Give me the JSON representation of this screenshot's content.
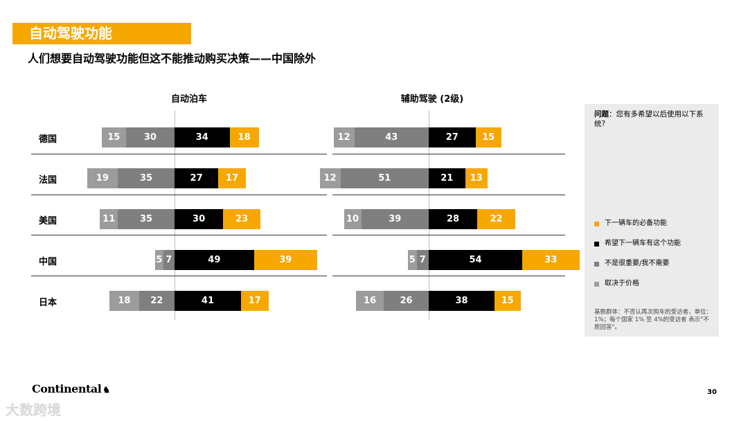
{
  "header": {
    "title": "自动驾驶功能",
    "subtitle": "人们想要自动驾驶功能但这不能推动购买决策——中国除外"
  },
  "colors": {
    "must_have": "#f6a800",
    "want": "#000000",
    "not_important": "#7f7f7f",
    "depends_on_price": "#9c9c9c",
    "title_bar": "#f6a800"
  },
  "chart_data": [
    {
      "type": "bar",
      "stacking": "diverging",
      "title": "自动泊车",
      "categories": [
        "德国",
        "法国",
        "美国",
        "中国",
        "日本"
      ],
      "series": [
        {
          "name": "取决于价格",
          "values": [
            15,
            19,
            11,
            5,
            18
          ],
          "side": "left"
        },
        {
          "name": "不是很重要/我不需要",
          "values": [
            30,
            35,
            35,
            7,
            22
          ],
          "side": "left"
        },
        {
          "name": "希望下一辆车有这个功能",
          "values": [
            34,
            27,
            30,
            49,
            41
          ],
          "side": "right"
        },
        {
          "name": "下一辆车的必备功能",
          "values": [
            18,
            17,
            23,
            39,
            17
          ],
          "side": "right"
        }
      ]
    },
    {
      "type": "bar",
      "stacking": "diverging",
      "title": "辅助驾驶 (2级)",
      "categories": [
        "德国",
        "法国",
        "美国",
        "中国",
        "日本"
      ],
      "series": [
        {
          "name": "取决于价格",
          "values": [
            12,
            12,
            10,
            5,
            16
          ],
          "side": "left"
        },
        {
          "name": "不是很重要/我不需要",
          "values": [
            43,
            51,
            39,
            7,
            26
          ],
          "side": "left"
        },
        {
          "name": "希望下一辆车有这个功能",
          "values": [
            27,
            21,
            28,
            54,
            38
          ],
          "side": "right"
        },
        {
          "name": "下一辆车的必备功能",
          "values": [
            15,
            13,
            22,
            33,
            15
          ],
          "side": "right"
        }
      ]
    }
  ],
  "sidebar": {
    "question_label": "问题",
    "question_text": "：您有多希望以后使用以下系统?",
    "legend": [
      {
        "label": "下一辆车的必备功能",
        "color": "#f6a800"
      },
      {
        "label": "希望下一辆车有这个功能",
        "color": "#000000"
      },
      {
        "label": "不是很重要/我不需要",
        "color": "#7f7f7f"
      },
      {
        "label": "取决于价格",
        "color": "#9c9c9c"
      }
    ],
    "note": "基数群体：不否认再次购车的受访者，单位：1%；每个国家 1% 至 4%的受访者 表示\"不愿回答\"。"
  },
  "footer": {
    "logo": "Continental",
    "page_number": "30",
    "watermark": "大数跨境"
  }
}
